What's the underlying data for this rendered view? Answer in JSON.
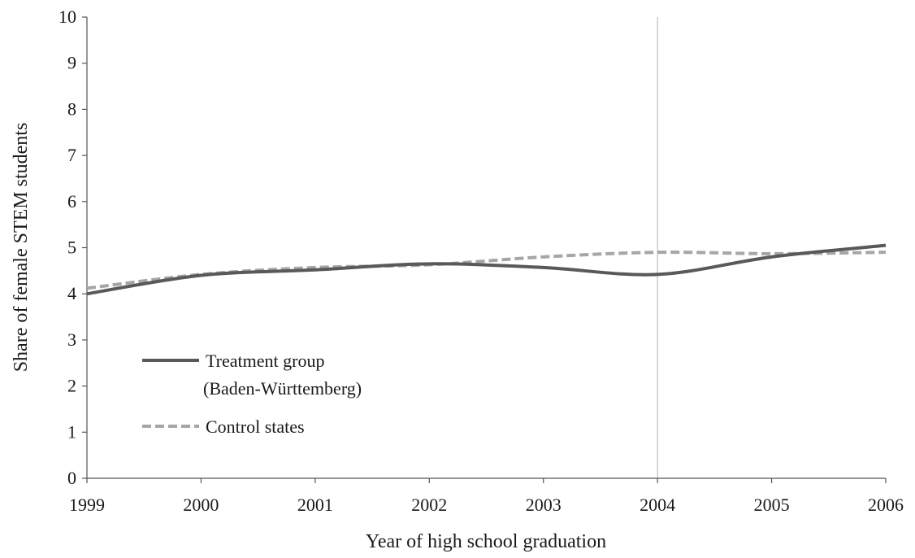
{
  "chart_data": {
    "type": "line",
    "xlabel": "Year of high school graduation",
    "ylabel": "Share of female STEM students",
    "x": [
      1999,
      2000,
      2001,
      2002,
      2003,
      2004,
      2005,
      2006
    ],
    "xlim": [
      1999,
      2006
    ],
    "ylim": [
      0,
      10
    ],
    "y_ticks": [
      0,
      1,
      2,
      3,
      4,
      5,
      6,
      7,
      8,
      9,
      10
    ],
    "grid": false,
    "reference_line_x": 2004,
    "legend_placement": "lower-left",
    "series": [
      {
        "name_lines": [
          "Treatment group",
          "(Baden-Württemberg)"
        ],
        "values": [
          4.0,
          4.4,
          4.52,
          4.65,
          4.57,
          4.42,
          4.8,
          5.05
        ],
        "color": "#595959",
        "style": "solid"
      },
      {
        "name_lines": [
          "Control states"
        ],
        "values": [
          4.12,
          4.42,
          4.57,
          4.63,
          4.8,
          4.9,
          4.87,
          4.9
        ],
        "color": "#a6a6a6",
        "style": "dashed"
      }
    ]
  }
}
